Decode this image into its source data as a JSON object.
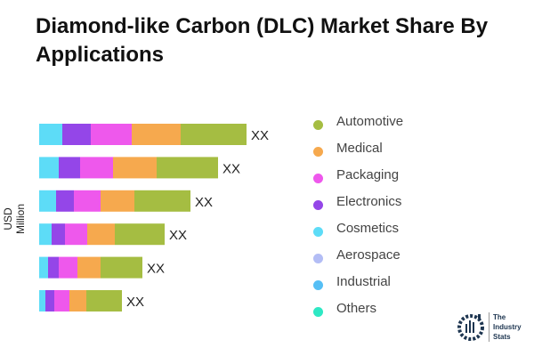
{
  "chart_data": {
    "type": "bar",
    "orientation": "horizontal",
    "stacked": true,
    "title": "Diamond-like Carbon (DLC) Market Share By Applications",
    "ylabel": "USD Million",
    "categories": [
      "",
      "",
      "",
      "",
      "",
      ""
    ],
    "data_labels": [
      "XX",
      "XX",
      "XX",
      "XX",
      "XX",
      "XX"
    ],
    "series": [
      {
        "name": "Automotive",
        "color": "#a5bd42",
        "values": [
          74,
          69,
          63,
          56,
          47,
          40
        ]
      },
      {
        "name": "Medical",
        "color": "#f6a94e",
        "values": [
          55,
          49,
          38,
          31,
          26,
          19
        ]
      },
      {
        "name": "Packaging",
        "color": "#ee58ec",
        "values": [
          46,
          37,
          30,
          25,
          21,
          17
        ]
      },
      {
        "name": "Electronics",
        "color": "#9446e8",
        "values": [
          32,
          24,
          20,
          15,
          12,
          10
        ]
      },
      {
        "name": "Cosmetics",
        "color": "#5ddcf7",
        "values": [
          26,
          22,
          19,
          14,
          10,
          7
        ]
      },
      {
        "name": "Aerospace",
        "color": "#b3bdf5",
        "values": [
          0,
          0,
          0,
          0,
          0,
          0
        ]
      },
      {
        "name": "Industrial",
        "color": "#56bff5",
        "values": [
          0,
          0,
          0,
          0,
          0,
          0
        ]
      },
      {
        "name": "Others",
        "color": "#2ee8c4",
        "values": [
          0,
          0,
          0,
          0,
          0,
          0
        ]
      }
    ],
    "legend_position": "right",
    "grid": false
  },
  "logo": {
    "text": "The Industry Stats"
  }
}
